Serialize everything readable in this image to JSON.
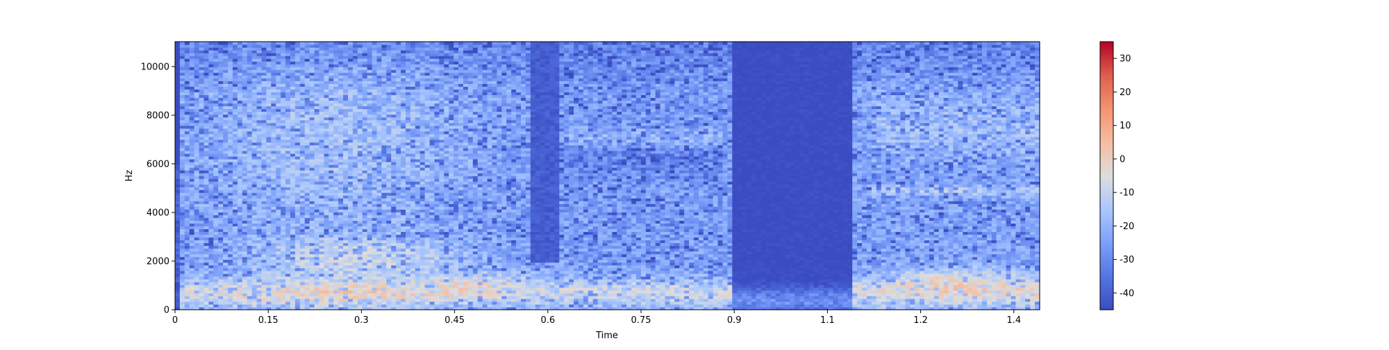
{
  "chart_data": {
    "type": "heatmap",
    "title": "",
    "xlabel": "Time",
    "ylabel": "Hz",
    "x_ticks": [
      "0",
      "0.15",
      "0.3",
      "0.45",
      "0.6",
      "0.75",
      "0.9",
      "1.1",
      "1.2",
      "1.4"
    ],
    "y_ticks": [
      "0",
      "2000",
      "4000",
      "6000",
      "8000",
      "10000"
    ],
    "xlim": [
      0,
      1.393
    ],
    "ylim": [
      0,
      11025
    ],
    "colorbar": {
      "colormap": "coolwarm",
      "ticks": [
        "-40",
        "-30",
        "-20",
        "-10",
        "0",
        "10",
        "20",
        "30"
      ],
      "range": [
        -45,
        35
      ]
    },
    "grid": false,
    "description_of_values": "dB spectrogram: energy concentrated in speech segments 0.05-0.58 s, 0.6-0.9 s and 1.09-1.39 s; strongest energy below 2000 Hz (peaks ~20-25 dB near 0.27 s and 1.25 s at 600-1300 Hz); silence near 0.9-1.09 s above 1000 Hz"
  },
  "colors": {
    "low": "#3b4cc0",
    "mid": "#dddddd",
    "high": "#b40426"
  }
}
